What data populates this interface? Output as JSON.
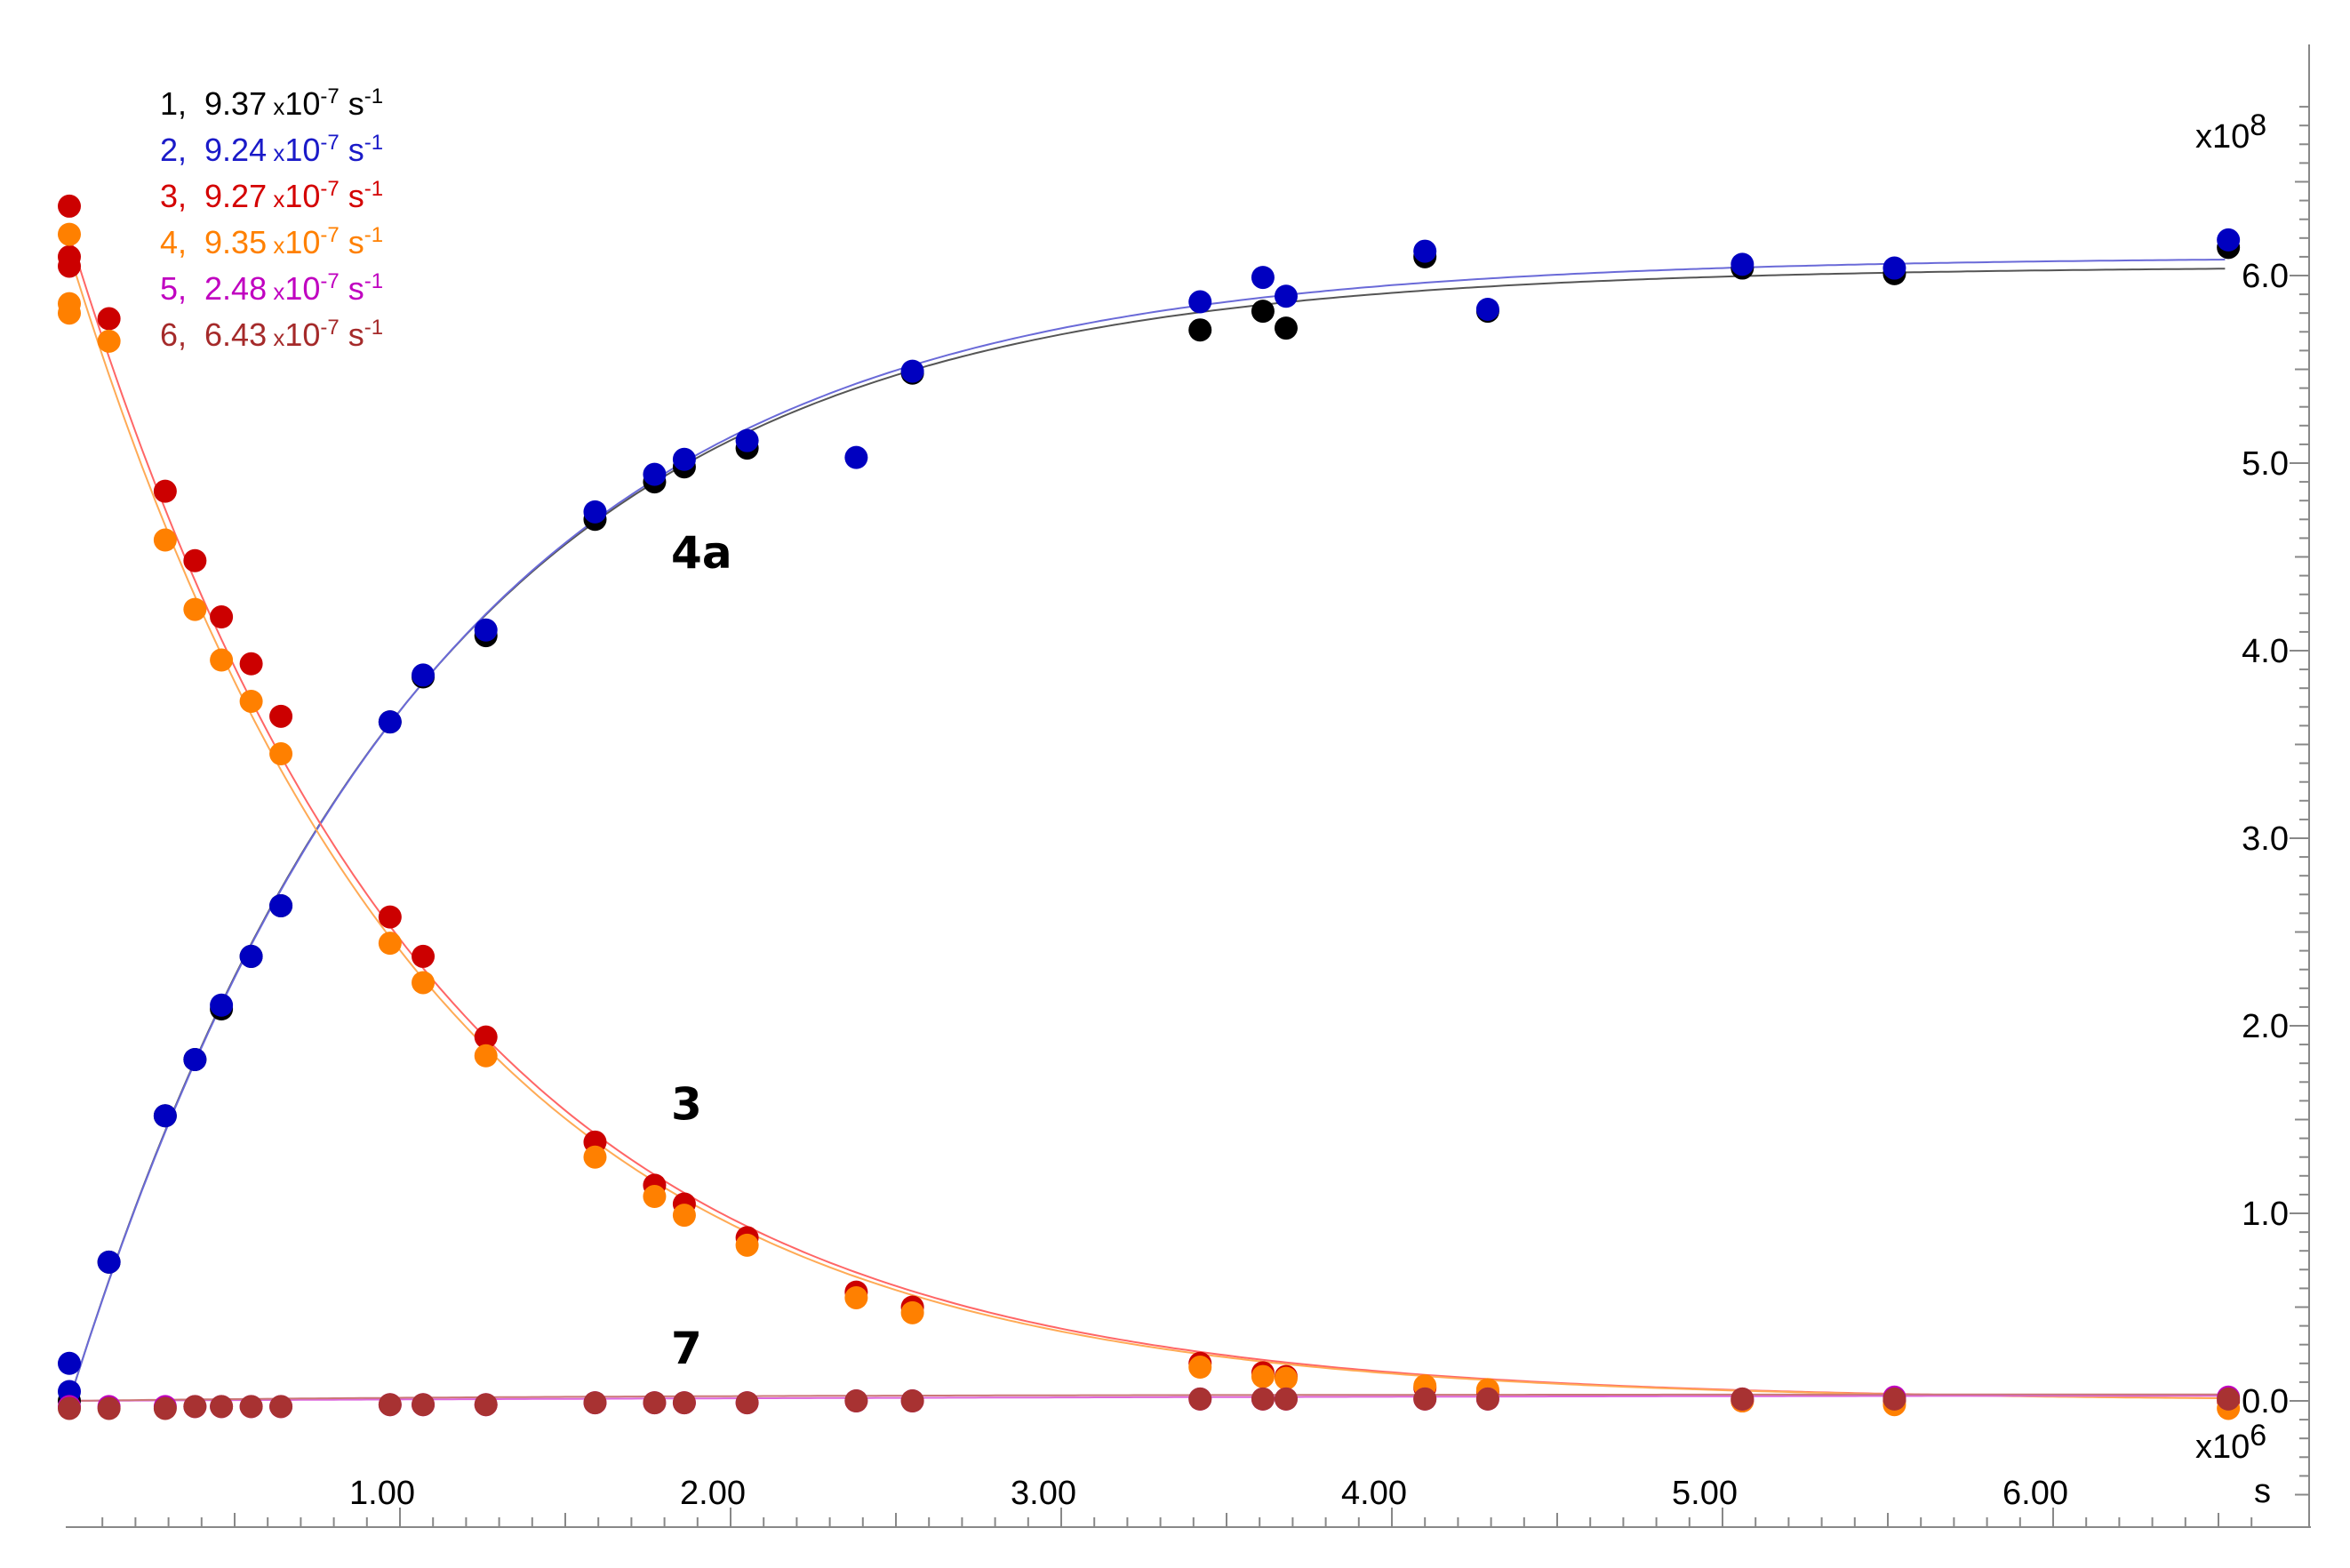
{
  "chart_data": {
    "type": "scatter",
    "x_multiplier_label": "x10",
    "x_multiplier_exp": "6",
    "x_unit": "s",
    "y_multiplier_label": "x10",
    "y_multiplier_exp": "8",
    "xlim": [
      0,
      6.65
    ],
    "ylim": [
      -0.05,
      6.8
    ],
    "x_ticks": [
      {
        "value": 1,
        "label": "1.00"
      },
      {
        "value": 2,
        "label": "2.00"
      },
      {
        "value": 3,
        "label": "3.00"
      },
      {
        "value": 4,
        "label": "4.00"
      },
      {
        "value": 5,
        "label": "5.00"
      },
      {
        "value": 6,
        "label": "6.00"
      }
    ],
    "y_ticks": [
      {
        "value": 0,
        "label": "0.0"
      },
      {
        "value": 1,
        "label": "1.0"
      },
      {
        "value": 2,
        "label": "2.0"
      },
      {
        "value": 3,
        "label": "3.0"
      },
      {
        "value": 4,
        "label": "4.0"
      },
      {
        "value": 5,
        "label": "5.0"
      },
      {
        "value": 6,
        "label": "6.0"
      }
    ],
    "annotations": [
      {
        "text": "4a",
        "x": 1.82,
        "y": 4.44
      },
      {
        "text": "3",
        "x": 1.82,
        "y": 1.5
      },
      {
        "text": "7",
        "x": 1.82,
        "y": 0.2
      }
    ],
    "legend": [
      {
        "num": "1,",
        "mantissa": "9.37",
        "times": "x",
        "base": "10",
        "exp": "-7",
        "unit": "s",
        "unit_exp": "-1",
        "color": "#000000"
      },
      {
        "num": "2,",
        "mantissa": "9.24",
        "times": "x",
        "base": "10",
        "exp": "-7",
        "unit": "s",
        "unit_exp": "-1",
        "color": "#1a1ac8"
      },
      {
        "num": "3,",
        "mantissa": "9.27",
        "times": "x",
        "base": "10",
        "exp": "-7",
        "unit": "s",
        "unit_exp": "-1",
        "color": "#d40000"
      },
      {
        "num": "4,",
        "mantissa": "9.35",
        "times": "x",
        "base": "10",
        "exp": "-7",
        "unit": "s",
        "unit_exp": "-1",
        "color": "#ff8000"
      },
      {
        "num": "5,",
        "mantissa": "2.48",
        "times": "x",
        "base": "10",
        "exp": "-7",
        "unit": "s",
        "unit_exp": "-1",
        "color": "#c000c0"
      },
      {
        "num": "6,",
        "mantissa": "6.43",
        "times": "x",
        "base": "10",
        "exp": "-7",
        "unit": "s",
        "unit_exp": "-1",
        "color": "#a52a2a"
      }
    ],
    "series": [
      {
        "color": "#000000",
        "fit_color": "#555555",
        "fit_A": 6.05,
        "fit_k": 0.937,
        "fit_type": "rise",
        "points": [
          [
            0.0,
            0.0
          ],
          [
            0.12,
            0.74
          ],
          [
            0.29,
            1.52
          ],
          [
            0.38,
            1.82
          ],
          [
            0.46,
            2.09
          ],
          [
            0.55,
            2.37
          ],
          [
            0.64,
            2.64
          ],
          [
            0.97,
            3.62
          ],
          [
            1.07,
            3.86
          ],
          [
            1.26,
            4.08
          ],
          [
            1.59,
            4.7
          ],
          [
            1.77,
            4.9
          ],
          [
            1.86,
            4.98
          ],
          [
            2.05,
            5.08
          ],
          [
            2.55,
            5.48
          ],
          [
            3.42,
            5.71
          ],
          [
            3.61,
            5.81
          ],
          [
            3.68,
            5.72
          ],
          [
            4.1,
            6.1
          ],
          [
            4.29,
            5.81
          ],
          [
            5.06,
            6.04
          ],
          [
            5.52,
            6.01
          ],
          [
            6.53,
            6.15
          ]
        ]
      },
      {
        "color": "#0000c0",
        "fit_color": "#6a6ad8",
        "fit_A": 6.1,
        "fit_k": 0.924,
        "fit_type": "rise",
        "points": [
          [
            0.0,
            0.05
          ],
          [
            0.0,
            0.2
          ],
          [
            0.12,
            0.74
          ],
          [
            0.29,
            1.52
          ],
          [
            0.38,
            1.82
          ],
          [
            0.46,
            2.11
          ],
          [
            0.55,
            2.37
          ],
          [
            0.64,
            2.64
          ],
          [
            0.97,
            3.62
          ],
          [
            1.07,
            3.87
          ],
          [
            1.26,
            4.11
          ],
          [
            1.59,
            4.74
          ],
          [
            1.77,
            4.94
          ],
          [
            1.86,
            5.02
          ],
          [
            2.05,
            5.12
          ],
          [
            2.38,
            5.03
          ],
          [
            2.55,
            5.49
          ],
          [
            3.42,
            5.86
          ],
          [
            3.61,
            5.99
          ],
          [
            3.68,
            5.89
          ],
          [
            4.1,
            6.13
          ],
          [
            4.29,
            5.82
          ],
          [
            5.06,
            6.06
          ],
          [
            5.52,
            6.04
          ],
          [
            6.53,
            6.19
          ]
        ]
      },
      {
        "color": "#cc0000",
        "fit_color": "#ff6666",
        "fit_A": 6.22,
        "fit_k": 0.927,
        "fit_type": "decay",
        "points": [
          [
            0.0,
            6.37
          ],
          [
            0.0,
            6.1
          ],
          [
            0.0,
            6.05
          ],
          [
            0.12,
            5.77
          ],
          [
            0.29,
            4.85
          ],
          [
            0.38,
            4.48
          ],
          [
            0.46,
            4.18
          ],
          [
            0.55,
            3.93
          ],
          [
            0.64,
            3.65
          ],
          [
            0.97,
            2.58
          ],
          [
            1.07,
            2.37
          ],
          [
            1.26,
            1.94
          ],
          [
            1.59,
            1.38
          ],
          [
            1.77,
            1.15
          ],
          [
            1.86,
            1.05
          ],
          [
            2.05,
            0.87
          ],
          [
            2.38,
            0.58
          ],
          [
            2.55,
            0.5
          ],
          [
            3.42,
            0.2
          ],
          [
            3.61,
            0.15
          ],
          [
            3.68,
            0.13
          ],
          [
            4.1,
            0.07
          ],
          [
            4.29,
            0.05
          ],
          [
            5.06,
            0.0
          ],
          [
            5.52,
            0.0
          ],
          [
            6.53,
            0.0
          ]
        ]
      },
      {
        "color": "#ff8000",
        "fit_color": "#ffaa55",
        "fit_A": 6.12,
        "fit_k": 0.935,
        "fit_type": "decay",
        "points": [
          [
            0.0,
            6.22
          ],
          [
            0.0,
            5.85
          ],
          [
            0.0,
            5.8
          ],
          [
            0.12,
            5.65
          ],
          [
            0.29,
            4.59
          ],
          [
            0.38,
            4.22
          ],
          [
            0.46,
            3.95
          ],
          [
            0.55,
            3.73
          ],
          [
            0.64,
            3.45
          ],
          [
            0.97,
            2.44
          ],
          [
            1.07,
            2.23
          ],
          [
            1.26,
            1.84
          ],
          [
            1.59,
            1.3
          ],
          [
            1.77,
            1.09
          ],
          [
            1.86,
            0.99
          ],
          [
            2.05,
            0.83
          ],
          [
            2.38,
            0.55
          ],
          [
            2.55,
            0.47
          ],
          [
            3.42,
            0.18
          ],
          [
            3.61,
            0.13
          ],
          [
            3.68,
            0.12
          ],
          [
            4.1,
            0.08
          ],
          [
            4.29,
            0.06
          ],
          [
            5.06,
            0.0
          ],
          [
            5.52,
            -0.02
          ],
          [
            6.53,
            -0.04
          ]
        ]
      },
      {
        "color": "#c000c0",
        "fit_color": "#dd66dd",
        "fit_A": 0.035,
        "fit_k": 0.248,
        "fit_type": "rise",
        "points": [
          [
            0.0,
            -0.03
          ],
          [
            0.12,
            -0.03
          ],
          [
            0.29,
            -0.03
          ],
          [
            0.38,
            -0.03
          ],
          [
            0.46,
            -0.03
          ],
          [
            0.55,
            -0.03
          ],
          [
            0.64,
            -0.03
          ],
          [
            0.97,
            -0.02
          ],
          [
            1.07,
            -0.02
          ],
          [
            1.26,
            -0.02
          ],
          [
            1.59,
            -0.01
          ],
          [
            1.77,
            -0.01
          ],
          [
            1.86,
            -0.01
          ],
          [
            2.05,
            -0.01
          ],
          [
            2.38,
            0.0
          ],
          [
            2.55,
            0.0
          ],
          [
            3.42,
            0.01
          ],
          [
            3.61,
            0.01
          ],
          [
            3.68,
            0.01
          ],
          [
            4.1,
            0.01
          ],
          [
            4.29,
            0.01
          ],
          [
            5.06,
            0.01
          ],
          [
            5.52,
            0.02
          ],
          [
            6.53,
            0.02
          ]
        ]
      },
      {
        "color": "#a83232",
        "fit_color": "#cc7777",
        "fit_A": 0.035,
        "fit_k": 0.643,
        "fit_type": "rise",
        "points": [
          [
            0.0,
            -0.04
          ],
          [
            0.12,
            -0.04
          ],
          [
            0.29,
            -0.04
          ],
          [
            0.38,
            -0.03
          ],
          [
            0.46,
            -0.03
          ],
          [
            0.55,
            -0.03
          ],
          [
            0.64,
            -0.03
          ],
          [
            0.97,
            -0.02
          ],
          [
            1.07,
            -0.02
          ],
          [
            1.26,
            -0.02
          ],
          [
            1.59,
            -0.01
          ],
          [
            1.77,
            -0.01
          ],
          [
            1.86,
            -0.01
          ],
          [
            2.05,
            -0.01
          ],
          [
            2.38,
            0.0
          ],
          [
            2.55,
            0.0
          ],
          [
            3.42,
            0.01
          ],
          [
            3.61,
            0.01
          ],
          [
            3.68,
            0.01
          ],
          [
            4.1,
            0.01
          ],
          [
            4.29,
            0.01
          ],
          [
            5.06,
            0.01
          ],
          [
            5.52,
            0.01
          ],
          [
            6.53,
            0.01
          ]
        ]
      }
    ]
  }
}
